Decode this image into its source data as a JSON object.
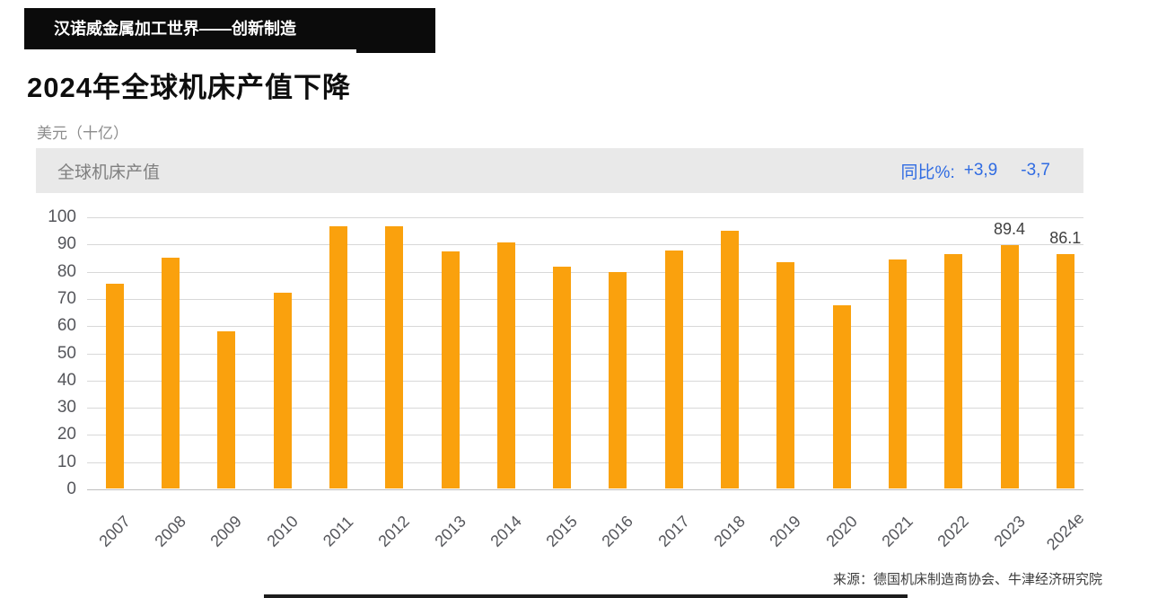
{
  "badge": {
    "text": "汉诺威金属加工世界——创新制造"
  },
  "page_title": "2024年全球机床产值下降",
  "unit_label": "美元（十亿）",
  "panel": {
    "series_label": "全球机床产值",
    "yoy_label": "同比%:",
    "yoy_2023": "+3,9",
    "yoy_2024": "-3,7"
  },
  "source_note": "来源：德国机床制造商协会、牛津经济研究院",
  "colors": {
    "bar_orange": "#faa10d",
    "accent_blue": "#2f6be2",
    "panel_bg": "#e9e9e9"
  },
  "chart_data": {
    "type": "bar",
    "title": "全球机床产值",
    "ylabel": "美元（十亿）",
    "xlabel": "",
    "grid": true,
    "legend_position": "none",
    "ylim": [
      0,
      100
    ],
    "ytick_step": 10,
    "categories": [
      "2007",
      "2008",
      "2009",
      "2010",
      "2011",
      "2012",
      "2013",
      "2014",
      "2015",
      "2016",
      "2017",
      "2018",
      "2019",
      "2020",
      "2021",
      "2022",
      "2023",
      "2024e"
    ],
    "values": [
      75.2,
      84.8,
      57.7,
      72.0,
      96.3,
      96.3,
      87.0,
      90.5,
      81.6,
      79.4,
      87.6,
      94.6,
      83.2,
      67.3,
      84.3,
      86.0,
      89.4,
      86.1
    ],
    "point_labels": [
      null,
      null,
      null,
      null,
      null,
      null,
      null,
      null,
      null,
      null,
      null,
      null,
      null,
      null,
      null,
      null,
      "89.4",
      "86.1"
    ]
  }
}
